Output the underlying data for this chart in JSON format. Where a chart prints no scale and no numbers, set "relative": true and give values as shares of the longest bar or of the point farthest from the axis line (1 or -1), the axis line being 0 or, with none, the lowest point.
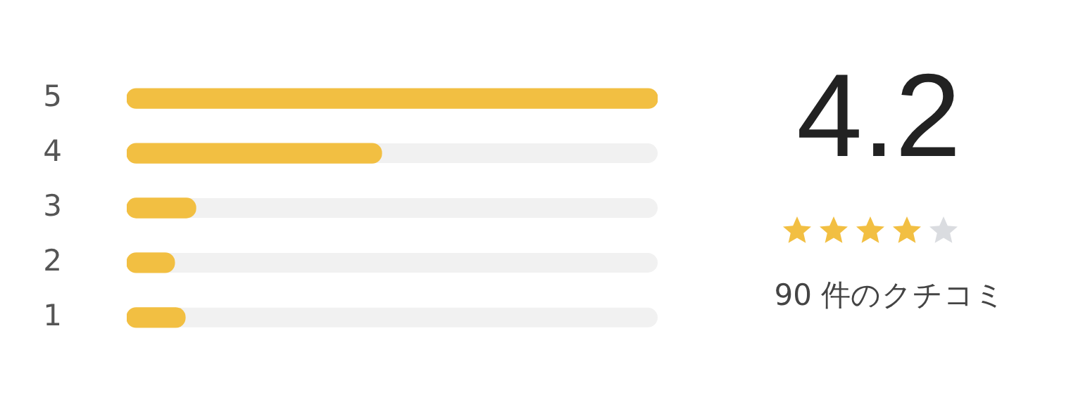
{
  "chart_data": {
    "type": "bar",
    "orientation": "horizontal",
    "relative": true,
    "categories": [
      "5",
      "4",
      "3",
      "2",
      "1"
    ],
    "values": [
      1,
      0.48,
      0.13,
      0.09,
      0.11
    ],
    "color": "#f2bf42",
    "legend": false,
    "annotations": [
      "4.2",
      "90 件のクチコミ"
    ]
  }
}
